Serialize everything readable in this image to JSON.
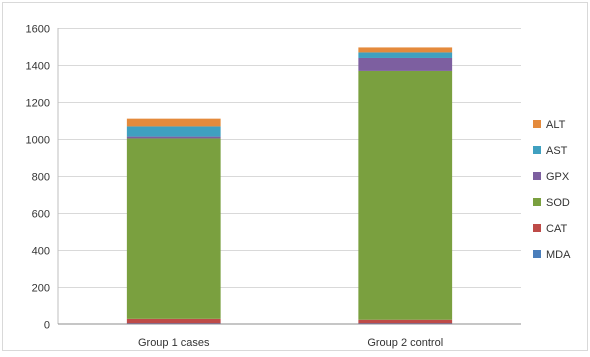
{
  "chart_data": {
    "type": "bar",
    "stacked": true,
    "categories": [
      "Group 1 cases",
      "Group 2 control"
    ],
    "series": [
      {
        "name": "MDA",
        "color": "#4a7ebb",
        "values": [
          3,
          3
        ]
      },
      {
        "name": "CAT",
        "color": "#be4b48",
        "values": [
          25,
          20
        ]
      },
      {
        "name": "SOD",
        "color": "#7aa03f",
        "values": [
          975,
          1345
        ]
      },
      {
        "name": "GPX",
        "color": "#7d5fa0",
        "values": [
          10,
          70
        ]
      },
      {
        "name": "AST",
        "color": "#3fa0c0",
        "values": [
          55,
          30
        ]
      },
      {
        "name": "ALT",
        "color": "#e48a3c",
        "values": [
          42,
          27
        ]
      }
    ],
    "yticks": [
      0,
      200,
      400,
      600,
      800,
      1000,
      1200,
      1400,
      1600
    ],
    "ylim": [
      0,
      1600
    ],
    "grid": "horizontal",
    "legend_position": "right",
    "legend_order": [
      "ALT",
      "AST",
      "GPX",
      "SOD",
      "CAT",
      "MDA"
    ]
  }
}
